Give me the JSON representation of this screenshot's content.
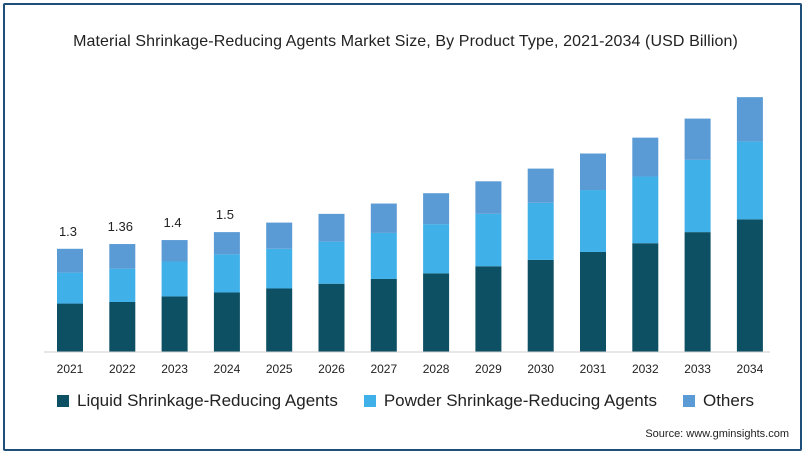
{
  "chart_data": {
    "type": "bar",
    "stacked": true,
    "title": "Material Shrinkage-Reducing Agents Market Size, By Product Type, 2021-2034 (USD Billion)",
    "categories": [
      "2021",
      "2022",
      "2023",
      "2024",
      "2025",
      "2026",
      "2027",
      "2028",
      "2029",
      "2030",
      "2031",
      "2032",
      "2033",
      "2034"
    ],
    "series": [
      {
        "name": "Liquid Shrinkage-Reducing Agents",
        "color": "#0d4f63",
        "values": [
          0.61,
          0.63,
          0.7,
          0.75,
          0.8,
          0.86,
          0.92,
          0.99,
          1.08,
          1.16,
          1.26,
          1.37,
          1.51,
          1.67
        ]
      },
      {
        "name": "Powder Shrinkage-Reducing Agents",
        "color": "#3fb0e8",
        "values": [
          0.39,
          0.42,
          0.44,
          0.48,
          0.5,
          0.53,
          0.58,
          0.62,
          0.66,
          0.72,
          0.78,
          0.84,
          0.91,
          0.98
        ]
      },
      {
        "name": "Others",
        "color": "#5b9bd5",
        "values": [
          0.3,
          0.31,
          0.27,
          0.28,
          0.33,
          0.35,
          0.37,
          0.39,
          0.41,
          0.43,
          0.46,
          0.49,
          0.52,
          0.56
        ]
      }
    ],
    "data_labels": [
      "1.3",
      "1.36",
      "1.4",
      "1.5",
      "",
      "",
      "",
      "",
      "",
      "",
      "",
      "",
      "",
      ""
    ],
    "ylim": [
      0,
      3.3
    ],
    "legend": "bottom",
    "grid": false
  },
  "source": "Source: www.gminsights.com"
}
